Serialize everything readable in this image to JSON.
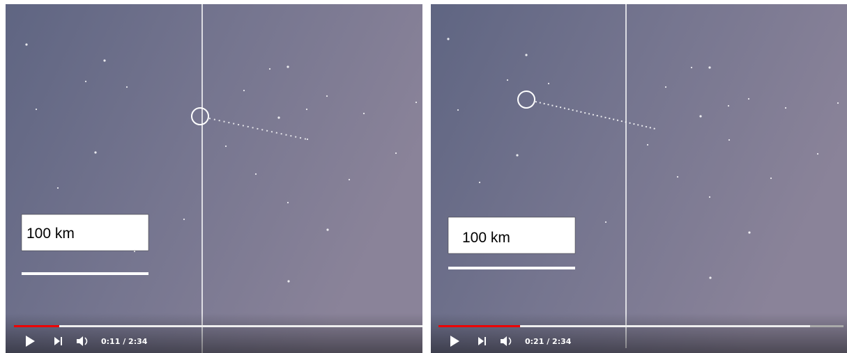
{
  "panels": [
    {
      "scale_label": "100 km",
      "time": "0:11 / 2:34"
    },
    {
      "scale_label": "100 km",
      "time": "0:21 / 2:34"
    }
  ]
}
